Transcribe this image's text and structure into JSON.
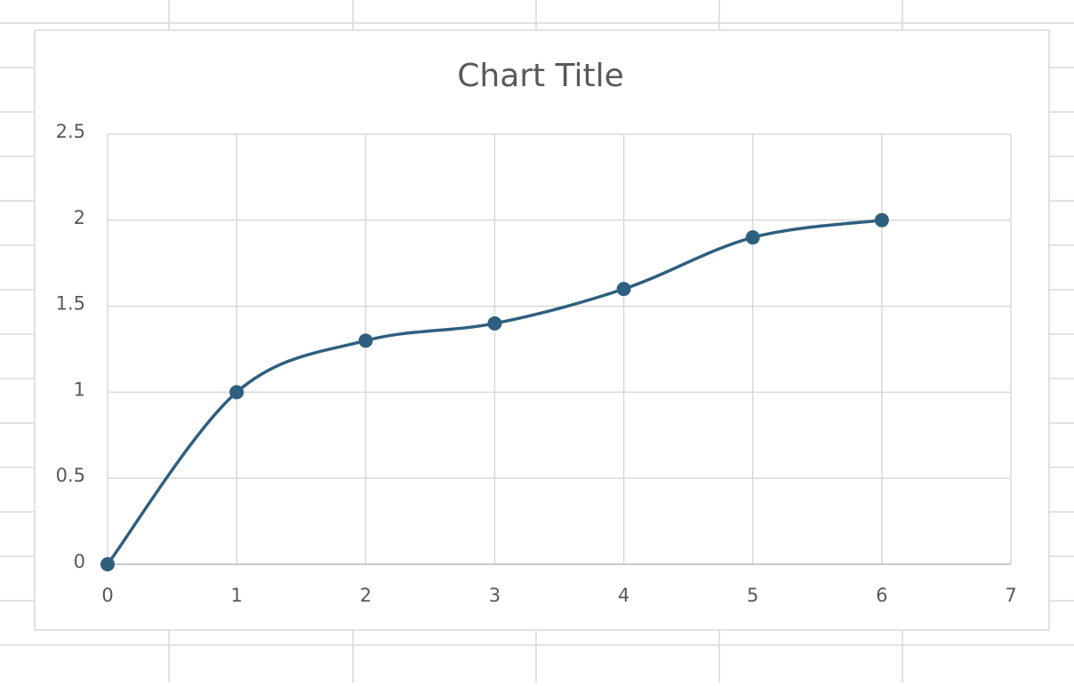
{
  "chart_data": {
    "type": "scatter",
    "title": "Chart Title",
    "smooth": true,
    "markers": true,
    "grid": true,
    "x": [
      0,
      1,
      2,
      3,
      4,
      5,
      6
    ],
    "series": [
      {
        "color": "#2e5f7f",
        "values": [
          0,
          1,
          1.3,
          1.4,
          1.6,
          1.9,
          2
        ]
      }
    ],
    "xlim": [
      0,
      7
    ],
    "xticks": [
      0,
      1,
      2,
      3,
      4,
      5,
      6,
      7
    ],
    "ylim": [
      0,
      2.5
    ],
    "yticks": [
      0,
      0.5,
      1,
      1.5,
      2,
      2.5
    ]
  }
}
